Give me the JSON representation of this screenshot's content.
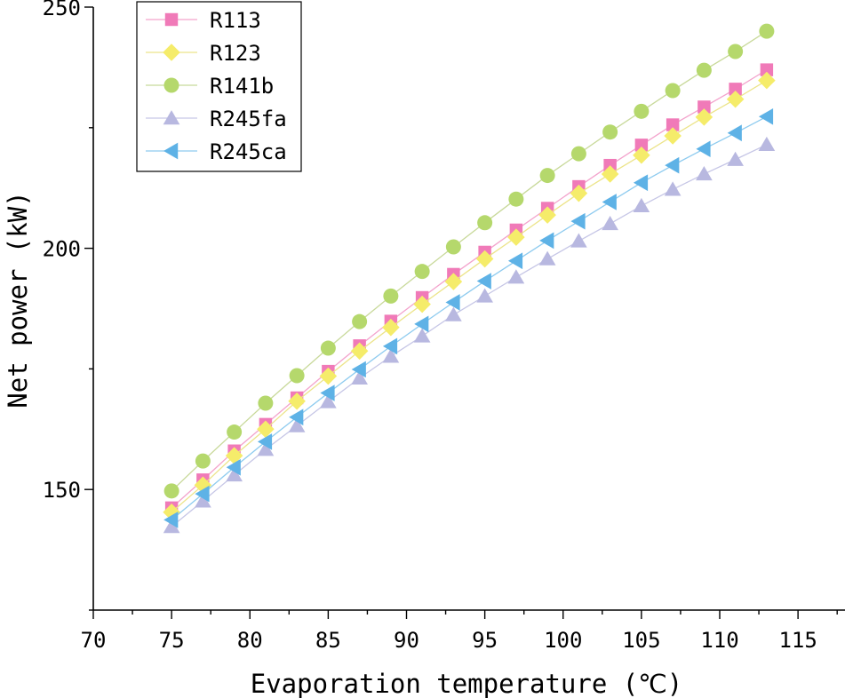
{
  "chart_data": {
    "type": "line",
    "title": "",
    "xlabel": "Evaporation temperature (℃)",
    "ylabel": "Net power (kW)",
    "xlim": [
      70,
      118
    ],
    "ylim": [
      125,
      250
    ],
    "x_ticks": [
      70,
      75,
      80,
      85,
      90,
      95,
      100,
      105,
      110,
      115
    ],
    "y_ticks": [
      150,
      200,
      250
    ],
    "grid": false,
    "legend": "top-left",
    "x": [
      75,
      77,
      79,
      81,
      83,
      85,
      87,
      89,
      91,
      93,
      95,
      97,
      99,
      101,
      103,
      105,
      107,
      109,
      111,
      113
    ],
    "series": [
      {
        "name": "R113",
        "marker": "square",
        "color": "#f07ab8",
        "line_color": "#f3a3cc",
        "values": [
          146.2,
          152.0,
          158.0,
          163.5,
          169.0,
          174.5,
          179.8,
          184.9,
          189.8,
          194.6,
          199.2,
          203.8,
          208.3,
          212.8,
          217.2,
          221.4,
          225.6,
          229.3,
          233.0,
          237.0
        ]
      },
      {
        "name": "R123",
        "marker": "diamond",
        "color": "#f5ec6a",
        "line_color": "#ece48a",
        "values": [
          145.3,
          150.9,
          157.0,
          162.5,
          168.3,
          173.5,
          178.7,
          183.6,
          188.4,
          193.1,
          197.8,
          202.3,
          206.9,
          211.4,
          215.4,
          219.3,
          223.3,
          227.2,
          230.9,
          234.8
        ]
      },
      {
        "name": "R141b",
        "marker": "circle",
        "color": "#b5d86c",
        "line_color": "#c8d99a",
        "values": [
          149.7,
          155.9,
          161.9,
          167.9,
          173.6,
          179.3,
          184.8,
          190.1,
          195.2,
          200.3,
          205.3,
          210.2,
          215.1,
          219.6,
          224.1,
          228.4,
          232.7,
          236.9,
          240.8,
          245.0
        ]
      },
      {
        "name": "R245fa",
        "marker": "triangle-up",
        "color": "#b8b8e0",
        "line_color": "#c6c6e6",
        "values": [
          142.3,
          147.6,
          153.0,
          158.3,
          163.2,
          168.2,
          173.1,
          177.6,
          181.8,
          186.2,
          190.1,
          194.0,
          197.8,
          201.5,
          205.1,
          208.8,
          212.2,
          215.4,
          218.4,
          221.5
        ]
      },
      {
        "name": "R245ca",
        "marker": "triangle-left",
        "color": "#5eb2e6",
        "line_color": "#8ecbef",
        "values": [
          143.7,
          149.1,
          154.6,
          159.9,
          165.0,
          170.0,
          174.9,
          179.7,
          184.3,
          188.8,
          193.2,
          197.4,
          201.6,
          205.6,
          209.6,
          213.6,
          217.2,
          220.6,
          223.9,
          227.3
        ]
      }
    ]
  }
}
